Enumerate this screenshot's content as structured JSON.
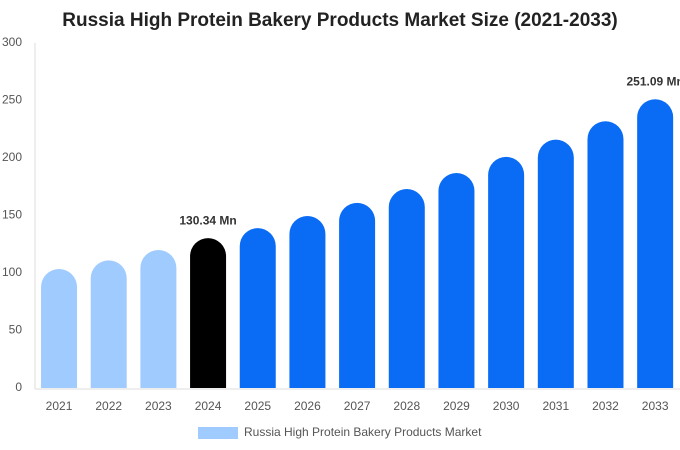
{
  "chart_data": {
    "type": "bar",
    "title": "Russia High Protein Bakery Products Market Size (2021-2033)",
    "categories": [
      "2021",
      "2022",
      "2023",
      "2024",
      "2025",
      "2026",
      "2027",
      "2028",
      "2029",
      "2030",
      "2031",
      "2032",
      "2033"
    ],
    "series": [
      {
        "name": "Russia High Protein Bakery Products Market",
        "color": "#a0cbff",
        "values": [
          103.5,
          111,
          120,
          130.34,
          139,
          149.6,
          161,
          173,
          187,
          201,
          216,
          232,
          251.09
        ],
        "colors": [
          "#a0cbff",
          "#a0cbff",
          "#a0cbff",
          "#000000",
          "#0a6cf5",
          "#0a6cf5",
          "#0a6cf5",
          "#0a6cf5",
          "#0a6cf5",
          "#0a6cf5",
          "#0a6cf5",
          "#0a6cf5",
          "#0a6cf5"
        ],
        "value_labels": [
          null,
          null,
          null,
          "130.34 Mn",
          null,
          null,
          null,
          null,
          null,
          null,
          null,
          null,
          "251.09 Mn"
        ]
      }
    ],
    "ylim": [
      0,
      300
    ],
    "yticks": [
      0,
      50,
      100,
      150,
      200,
      250,
      300
    ],
    "grid": false
  }
}
